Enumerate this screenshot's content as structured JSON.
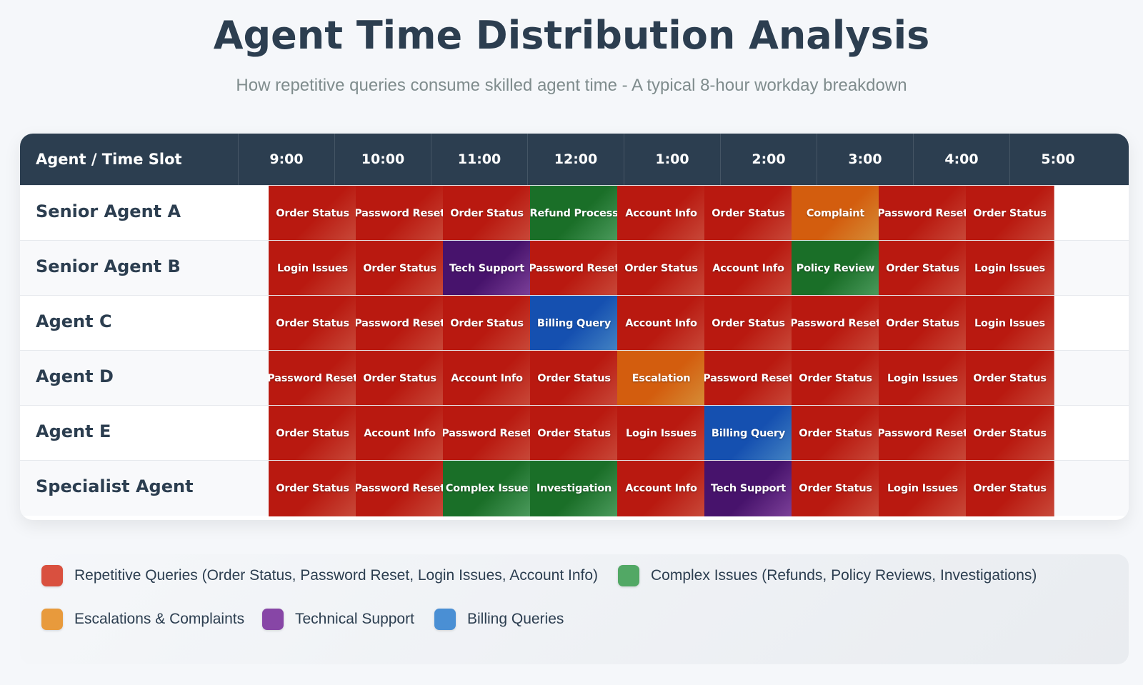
{
  "header": {
    "title": "Agent Time Distribution Analysis",
    "subtitle": "How repetitive queries consume skilled agent time - A typical 8-hour workday breakdown"
  },
  "chart_data": {
    "type": "table",
    "corner_label": "Agent / Time Slot",
    "time_slots": [
      "9:00",
      "10:00",
      "11:00",
      "12:00",
      "1:00",
      "2:00",
      "3:00",
      "4:00",
      "5:00"
    ],
    "categories": {
      "repetitive": {
        "color": "#d9503f",
        "label": "Repetitive Queries (Order Status, Password Reset, Login Issues, Account Info)"
      },
      "complex": {
        "color": "#52a865",
        "label": "Complex Issues (Refunds, Policy Reviews, Investigations)"
      },
      "escalation": {
        "color": "#e89a3c",
        "label": "Escalations & Complaints"
      },
      "technical": {
        "color": "#8746a6",
        "label": "Technical Support"
      },
      "billing": {
        "color": "#4a8fd4",
        "label": "Billing Queries"
      }
    },
    "rows": [
      {
        "agent": "Senior Agent A",
        "tasks": [
          {
            "label": "Order Status",
            "category": "repetitive"
          },
          {
            "label": "Password Reset",
            "category": "repetitive"
          },
          {
            "label": "Order Status",
            "category": "repetitive"
          },
          {
            "label": "Refund Process",
            "category": "complex"
          },
          {
            "label": "Account Info",
            "category": "repetitive"
          },
          {
            "label": "Order Status",
            "category": "repetitive"
          },
          {
            "label": "Complaint",
            "category": "escalation"
          },
          {
            "label": "Password Reset",
            "category": "repetitive"
          },
          {
            "label": "Order Status",
            "category": "repetitive"
          }
        ]
      },
      {
        "agent": "Senior Agent B",
        "tasks": [
          {
            "label": "Login Issues",
            "category": "repetitive"
          },
          {
            "label": "Order Status",
            "category": "repetitive"
          },
          {
            "label": "Tech Support",
            "category": "technical"
          },
          {
            "label": "Password Reset",
            "category": "repetitive"
          },
          {
            "label": "Order Status",
            "category": "repetitive"
          },
          {
            "label": "Account Info",
            "category": "repetitive"
          },
          {
            "label": "Policy Review",
            "category": "complex"
          },
          {
            "label": "Order Status",
            "category": "repetitive"
          },
          {
            "label": "Login Issues",
            "category": "repetitive"
          }
        ]
      },
      {
        "agent": "Agent C",
        "tasks": [
          {
            "label": "Order Status",
            "category": "repetitive"
          },
          {
            "label": "Password Reset",
            "category": "repetitive"
          },
          {
            "label": "Order Status",
            "category": "repetitive"
          },
          {
            "label": "Billing Query",
            "category": "billing"
          },
          {
            "label": "Account Info",
            "category": "repetitive"
          },
          {
            "label": "Order Status",
            "category": "repetitive"
          },
          {
            "label": "Password Reset",
            "category": "repetitive"
          },
          {
            "label": "Order Status",
            "category": "repetitive"
          },
          {
            "label": "Login Issues",
            "category": "repetitive"
          }
        ]
      },
      {
        "agent": "Agent D",
        "tasks": [
          {
            "label": "Password Reset",
            "category": "repetitive"
          },
          {
            "label": "Order Status",
            "category": "repetitive"
          },
          {
            "label": "Account Info",
            "category": "repetitive"
          },
          {
            "label": "Order Status",
            "category": "repetitive"
          },
          {
            "label": "Escalation",
            "category": "escalation"
          },
          {
            "label": "Password Reset",
            "category": "repetitive"
          },
          {
            "label": "Order Status",
            "category": "repetitive"
          },
          {
            "label": "Login Issues",
            "category": "repetitive"
          },
          {
            "label": "Order Status",
            "category": "repetitive"
          }
        ]
      },
      {
        "agent": "Agent E",
        "tasks": [
          {
            "label": "Order Status",
            "category": "repetitive"
          },
          {
            "label": "Account Info",
            "category": "repetitive"
          },
          {
            "label": "Password Reset",
            "category": "repetitive"
          },
          {
            "label": "Order Status",
            "category": "repetitive"
          },
          {
            "label": "Login Issues",
            "category": "repetitive"
          },
          {
            "label": "Billing Query",
            "category": "billing"
          },
          {
            "label": "Order Status",
            "category": "repetitive"
          },
          {
            "label": "Password Reset",
            "category": "repetitive"
          },
          {
            "label": "Order Status",
            "category": "repetitive"
          }
        ]
      },
      {
        "agent": "Specialist Agent",
        "tasks": [
          {
            "label": "Order Status",
            "category": "repetitive"
          },
          {
            "label": "Password Reset",
            "category": "repetitive"
          },
          {
            "label": "Complex Issue",
            "category": "complex"
          },
          {
            "label": "Investigation",
            "category": "complex"
          },
          {
            "label": "Account Info",
            "category": "repetitive"
          },
          {
            "label": "Tech Support",
            "category": "technical"
          },
          {
            "label": "Order Status",
            "category": "repetitive"
          },
          {
            "label": "Login Issues",
            "category": "repetitive"
          },
          {
            "label": "Order Status",
            "category": "repetitive"
          }
        ]
      }
    ],
    "legend_order": [
      "repetitive",
      "complex",
      "escalation",
      "technical",
      "billing"
    ],
    "legend_placement": "bottom"
  }
}
